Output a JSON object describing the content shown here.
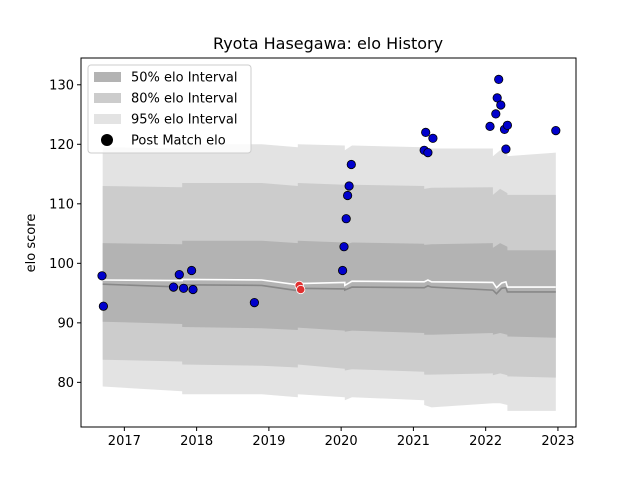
{
  "chart_data": {
    "type": "line",
    "title": "Ryota Hasegawa: elo History",
    "xlabel": "",
    "ylabel": "elo score",
    "xlim": [
      2016.4,
      2023.25
    ],
    "ylim": [
      72.5,
      134.5
    ],
    "xticks": [
      2017,
      2018,
      2019,
      2020,
      2021,
      2022,
      2023
    ],
    "yticks": [
      80,
      90,
      100,
      110,
      120,
      130
    ],
    "grid": false,
    "legend_position": "top-left",
    "legend": [
      {
        "label": "50% elo Interval",
        "kind": "band",
        "color": "#b3b3b3"
      },
      {
        "label": "80% elo Interval",
        "kind": "band",
        "color": "#cccccc"
      },
      {
        "label": "95% elo Interval",
        "kind": "band",
        "color": "#e3e3e3"
      },
      {
        "label": "Post Match elo",
        "kind": "marker",
        "color": "#000000"
      }
    ],
    "colors": {
      "point_fill": "#0000cc",
      "highlight_fill": "#e03030",
      "mean_line": "#ffffff",
      "median_line": "#888888"
    },
    "bands": {
      "x": [
        2016.7,
        2017.8,
        2017.8,
        2018.9,
        2019.4,
        2019.4,
        2020.05,
        2020.05,
        2020.15,
        2021.15,
        2021.15,
        2021.25,
        2022.1,
        2022.1,
        2022.2,
        2022.3,
        2022.3,
        2022.97
      ],
      "p95_low": [
        79.3,
        78.5,
        78,
        78,
        77.5,
        78,
        77.5,
        77,
        77.5,
        77,
        76.2,
        75.8,
        76.5,
        76.5,
        76.5,
        76.2,
        75.2,
        75.2
      ],
      "p80_low": [
        83.8,
        83.5,
        83,
        82.8,
        82.5,
        83,
        82.3,
        82,
        82.2,
        81.8,
        81.3,
        81.3,
        81.5,
        81.2,
        81.5,
        81.2,
        81,
        80.8
      ],
      "p50_low": [
        90.2,
        89.8,
        89.3,
        89.1,
        88.8,
        89.2,
        88.7,
        88.5,
        88.7,
        88.3,
        88,
        88,
        88.3,
        88,
        88.3,
        88,
        87.7,
        87.5
      ],
      "p50_high": [
        103.4,
        103.2,
        103.8,
        103.8,
        103.4,
        103.8,
        103.5,
        103.1,
        103.5,
        103.3,
        103.1,
        103.2,
        103.4,
        102.6,
        103.4,
        102.8,
        102.2,
        102.2
      ],
      "p80_high": [
        113,
        112.8,
        113.5,
        113.5,
        113,
        113.5,
        113.2,
        112.5,
        113.2,
        113,
        112.5,
        112.7,
        112.8,
        111.5,
        112.5,
        111.8,
        111.5,
        111.5
      ],
      "p95_high": [
        119.5,
        119.3,
        120,
        120,
        119.5,
        120,
        119.8,
        119,
        119.8,
        119.5,
        119,
        119.3,
        119.3,
        118,
        119,
        118.3,
        118,
        118.6
      ]
    },
    "mean_line": {
      "x": [
        2016.7,
        2017.8,
        2017.8,
        2018.9,
        2019.4,
        2019.42,
        2020.05,
        2020.05,
        2020.15,
        2021.15,
        2021.2,
        2021.25,
        2022.1,
        2022.15,
        2022.22,
        2022.28,
        2022.3,
        2022.97
      ],
      "y": [
        97.2,
        97.1,
        97.3,
        97.2,
        96.4,
        96.6,
        96.8,
        96.3,
        97,
        96.9,
        97.2,
        96.9,
        96.8,
        95.9,
        96.7,
        96.9,
        96,
        96
      ]
    },
    "median_line": {
      "x": [
        2016.7,
        2017.8,
        2017.8,
        2018.9,
        2019.4,
        2019.42,
        2020.05,
        2020.05,
        2020.15,
        2021.15,
        2021.2,
        2021.25,
        2022.1,
        2022.15,
        2022.22,
        2022.28,
        2022.3,
        2022.97
      ],
      "y": [
        96.5,
        96,
        96.4,
        96.3,
        95.4,
        95.8,
        95.7,
        95.5,
        96,
        95.9,
        96.2,
        96,
        95.5,
        94.9,
        95.8,
        95.9,
        95.2,
        95.2
      ]
    },
    "points": [
      {
        "x": 2016.69,
        "y": 97.9
      },
      {
        "x": 2016.71,
        "y": 92.8
      },
      {
        "x": 2017.68,
        "y": 96
      },
      {
        "x": 2017.76,
        "y": 98.1
      },
      {
        "x": 2017.82,
        "y": 95.8
      },
      {
        "x": 2017.93,
        "y": 98.8
      },
      {
        "x": 2017.95,
        "y": 95.6
      },
      {
        "x": 2018.8,
        "y": 93.4
      },
      {
        "x": 2019.42,
        "y": 96.3,
        "highlight": true
      },
      {
        "x": 2019.44,
        "y": 95.6,
        "highlight": true
      },
      {
        "x": 2020.02,
        "y": 98.8
      },
      {
        "x": 2020.04,
        "y": 102.8
      },
      {
        "x": 2020.07,
        "y": 107.5
      },
      {
        "x": 2020.09,
        "y": 111.4
      },
      {
        "x": 2020.11,
        "y": 113
      },
      {
        "x": 2020.14,
        "y": 116.6
      },
      {
        "x": 2021.15,
        "y": 119
      },
      {
        "x": 2021.17,
        "y": 122
      },
      {
        "x": 2021.2,
        "y": 118.6
      },
      {
        "x": 2021.27,
        "y": 121
      },
      {
        "x": 2022.06,
        "y": 123
      },
      {
        "x": 2022.14,
        "y": 125.1
      },
      {
        "x": 2022.16,
        "y": 127.8
      },
      {
        "x": 2022.18,
        "y": 130.9
      },
      {
        "x": 2022.21,
        "y": 126.6
      },
      {
        "x": 2022.26,
        "y": 122.5
      },
      {
        "x": 2022.28,
        "y": 119.2
      },
      {
        "x": 2022.3,
        "y": 123.2
      },
      {
        "x": 2022.97,
        "y": 122.3
      }
    ]
  }
}
